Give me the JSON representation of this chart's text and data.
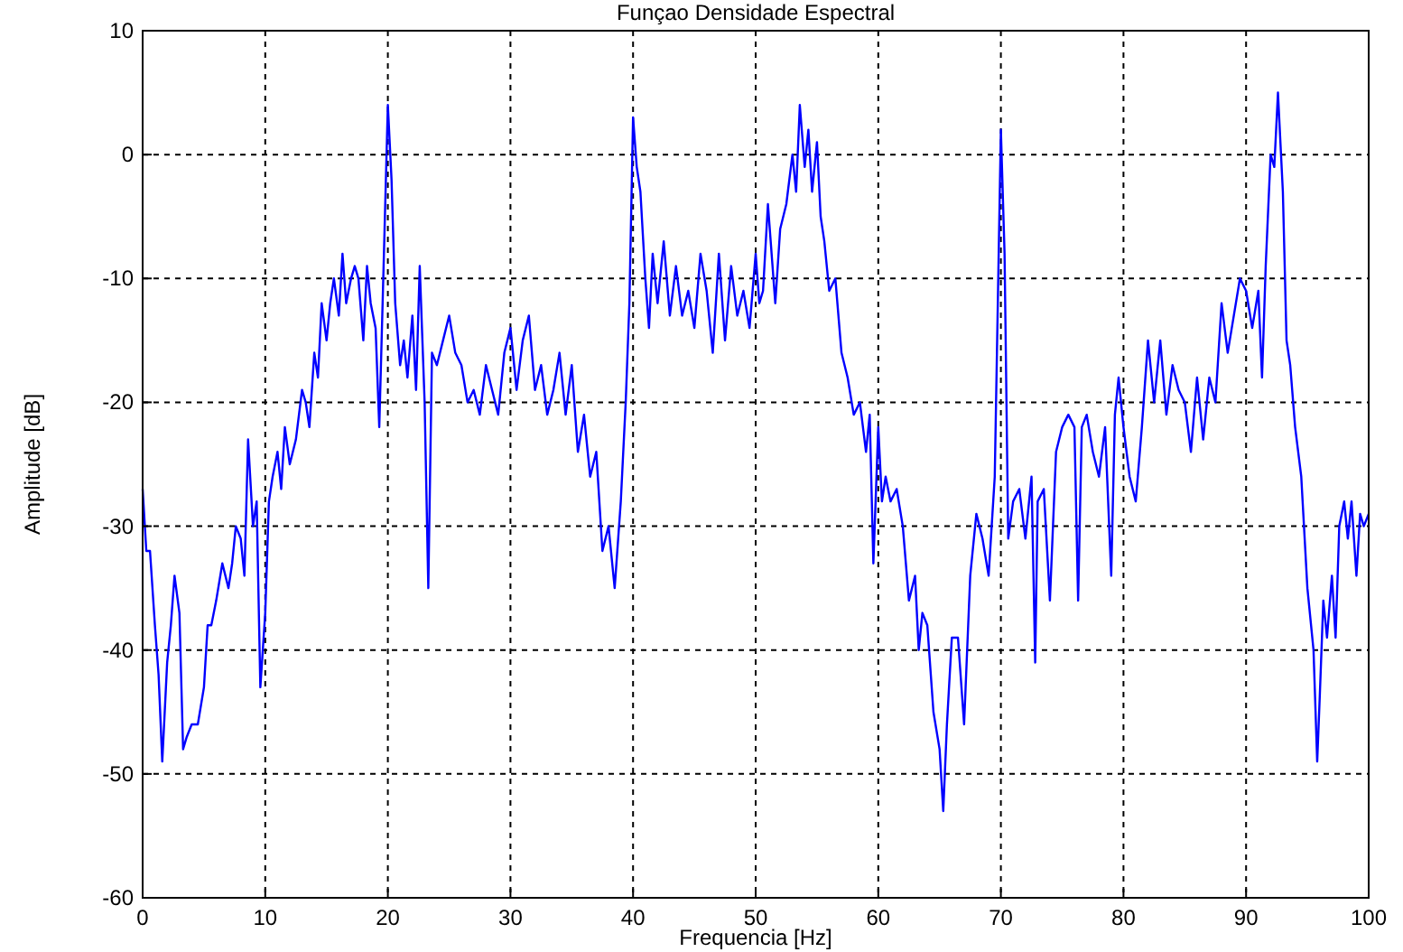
{
  "chart_data": {
    "type": "line",
    "title": "Funçao Densidade Espectral",
    "xlabel": "Frequencia [Hz]",
    "ylabel": "Amplitude [dB]",
    "xlim": [
      0,
      100
    ],
    "ylim": [
      -60,
      10
    ],
    "xticks": [
      0,
      10,
      20,
      30,
      40,
      50,
      60,
      70,
      80,
      90,
      100
    ],
    "yticks": [
      -60,
      -50,
      -40,
      -30,
      -20,
      -10,
      0,
      10
    ],
    "grid": true,
    "series": [
      {
        "color": "#0000ff",
        "x": [
          0,
          0.3,
          0.6,
          1,
          1.3,
          1.6,
          2,
          2.3,
          2.6,
          3,
          3.3,
          3.6,
          4,
          4.5,
          5,
          5.3,
          5.6,
          6,
          6.5,
          7,
          7.3,
          7.6,
          8,
          8.3,
          8.6,
          9,
          9.3,
          9.6,
          10,
          10.3,
          10.6,
          11,
          11.3,
          11.6,
          12,
          12.5,
          13,
          13.3,
          13.6,
          14,
          14.3,
          14.6,
          15,
          15.3,
          15.6,
          16,
          16.3,
          16.6,
          17,
          17.3,
          17.6,
          18,
          18.3,
          18.6,
          19,
          19.3,
          19.6,
          20,
          20.3,
          20.6,
          21,
          21.3,
          21.6,
          22,
          22.3,
          22.6,
          23,
          23.3,
          23.6,
          24,
          24.5,
          25,
          25.5,
          26,
          26.5,
          27,
          27.5,
          28,
          28.5,
          29,
          29.5,
          30,
          30.5,
          31,
          31.5,
          32,
          32.5,
          33,
          33.5,
          34,
          34.5,
          35,
          35.5,
          36,
          36.5,
          37,
          37.5,
          38,
          38.5,
          39,
          39.4,
          39.7,
          40,
          40.3,
          40.6,
          41,
          41.3,
          41.6,
          42,
          42.5,
          43,
          43.5,
          44,
          44.5,
          45,
          45.5,
          46,
          46.5,
          47,
          47.5,
          48,
          48.5,
          49,
          49.5,
          50,
          50.3,
          50.6,
          51,
          51.3,
          51.6,
          52,
          52.5,
          53,
          53.3,
          53.6,
          54,
          54.3,
          54.6,
          55,
          55.3,
          55.6,
          56,
          56.5,
          57,
          57.5,
          58,
          58.5,
          59,
          59.3,
          59.6,
          60,
          60.3,
          60.6,
          61,
          61.5,
          62,
          62.5,
          63,
          63.3,
          63.6,
          64,
          64.5,
          65,
          65.3,
          65.6,
          66,
          66.5,
          67,
          67.5,
          68,
          68.5,
          69,
          69.5,
          70,
          70.3,
          70.6,
          71,
          71.5,
          72,
          72.5,
          72.8,
          73,
          73.5,
          74,
          74.5,
          75,
          75.5,
          76,
          76.3,
          76.6,
          77,
          77.5,
          78,
          78.5,
          79,
          79.3,
          79.6,
          80,
          80.5,
          81,
          81.5,
          82,
          82.5,
          83,
          83.5,
          84,
          84.5,
          85,
          85.5,
          86,
          86.5,
          87,
          87.5,
          88,
          88.5,
          89,
          89.5,
          90,
          90.5,
          91,
          91.3,
          91.6,
          92,
          92.3,
          92.6,
          93,
          93.3,
          93.6,
          94,
          94.5,
          95,
          95.5,
          95.8,
          96,
          96.3,
          96.6,
          97,
          97.3,
          97.6,
          98,
          98.3,
          98.6,
          99,
          99.3,
          99.6,
          100
        ],
        "values": [
          -27,
          -32,
          -32,
          -38,
          -42,
          -49,
          -41,
          -38,
          -34,
          -37,
          -48,
          -47,
          -46,
          -46,
          -43,
          -38,
          -38,
          -36,
          -33,
          -35,
          -33,
          -30,
          -31,
          -34,
          -23,
          -30,
          -28,
          -43,
          -37,
          -28,
          -26,
          -24,
          -27,
          -22,
          -25,
          -23,
          -19,
          -20,
          -22,
          -16,
          -18,
          -12,
          -15,
          -12,
          -10,
          -13,
          -8,
          -12,
          -10,
          -9,
          -10,
          -15,
          -9,
          -12,
          -14,
          -22,
          -11,
          4,
          -2,
          -12,
          -17,
          -15,
          -18,
          -13,
          -19,
          -9,
          -20,
          -35,
          -16,
          -17,
          -15,
          -13,
          -16,
          -17,
          -20,
          -19,
          -21,
          -17,
          -19,
          -21,
          -16,
          -14,
          -19,
          -15,
          -13,
          -19,
          -17,
          -21,
          -19,
          -16,
          -21,
          -17,
          -24,
          -21,
          -26,
          -24,
          -32,
          -30,
          -35,
          -28,
          -20,
          -12,
          3,
          -1,
          -3,
          -10,
          -14,
          -8,
          -12,
          -7,
          -13,
          -9,
          -13,
          -11,
          -14,
          -8,
          -11,
          -16,
          -8,
          -15,
          -9,
          -13,
          -11,
          -14,
          -8,
          -12,
          -11,
          -4,
          -8,
          -12,
          -6,
          -4,
          0,
          -3,
          4,
          -1,
          2,
          -3,
          1,
          -5,
          -7,
          -11,
          -10,
          -16,
          -18,
          -21,
          -20,
          -24,
          -21,
          -33,
          -22,
          -28,
          -26,
          -28,
          -27,
          -30,
          -36,
          -34,
          -40,
          -37,
          -38,
          -45,
          -48,
          -53,
          -46,
          -39,
          -39,
          -46,
          -34,
          -29,
          -31,
          -34,
          -26,
          2,
          -8,
          -31,
          -28,
          -27,
          -31,
          -26,
          -41,
          -28,
          -27,
          -36,
          -24,
          -22,
          -21,
          -22,
          -36,
          -22,
          -21,
          -24,
          -26,
          -22,
          -34,
          -21,
          -18,
          -22,
          -26,
          -28,
          -22,
          -15,
          -20,
          -15,
          -21,
          -17,
          -19,
          -20,
          -24,
          -18,
          -23,
          -18,
          -20,
          -12,
          -16,
          -13,
          -10,
          -11,
          -14,
          -11,
          -18,
          -9,
          0,
          -1,
          5,
          -3,
          -15,
          -17,
          -22,
          -26,
          -35,
          -40,
          -49,
          -44,
          -36,
          -39,
          -34,
          -39,
          -30,
          -28,
          -31,
          -28,
          -34,
          -29,
          -30,
          -29
        ]
      }
    ]
  }
}
